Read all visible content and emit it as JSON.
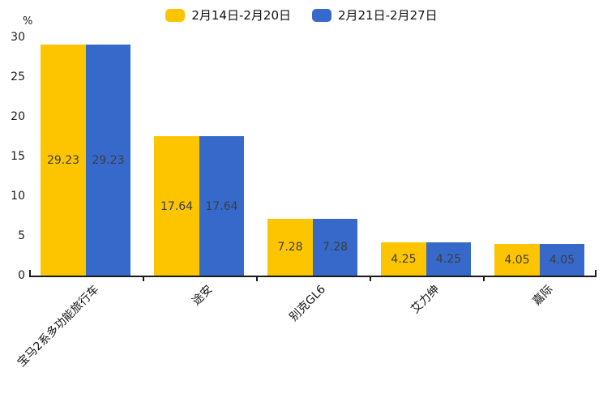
{
  "chart_data": {
    "type": "bar",
    "title": "",
    "ylabel": "%",
    "xlabel": "",
    "categories": [
      "宝马2系多功能旅行车",
      "途安",
      "别克GL6",
      "艾力绅",
      "嘉际"
    ],
    "series": [
      {
        "name": "2月14日-2月20日",
        "color": "#FDC500",
        "values": [
          29.23,
          17.64,
          7.28,
          4.25,
          4.05
        ]
      },
      {
        "name": "2月21日-2月27日",
        "color": "#3769CB",
        "values": [
          29.23,
          17.64,
          7.28,
          4.25,
          4.05
        ]
      }
    ],
    "data_labels": {
      "series_0": [
        "29.23",
        "17.64",
        "7.28",
        "4.25",
        "4.05"
      ],
      "series_1": [
        "29.23",
        "17.64",
        "7.28",
        "4.25",
        "4.05"
      ]
    },
    "ylim": [
      0,
      30
    ],
    "yticks": [
      0,
      5,
      10,
      15,
      20,
      25,
      30
    ],
    "grid": false,
    "legend_position": "top-center",
    "colors": {
      "axis": "#1a1a1a",
      "bar_value_label": "#3d3d3d",
      "tick_label": "#1a1a1a",
      "legend_text": "#111111",
      "background": "#ffffff"
    }
  }
}
